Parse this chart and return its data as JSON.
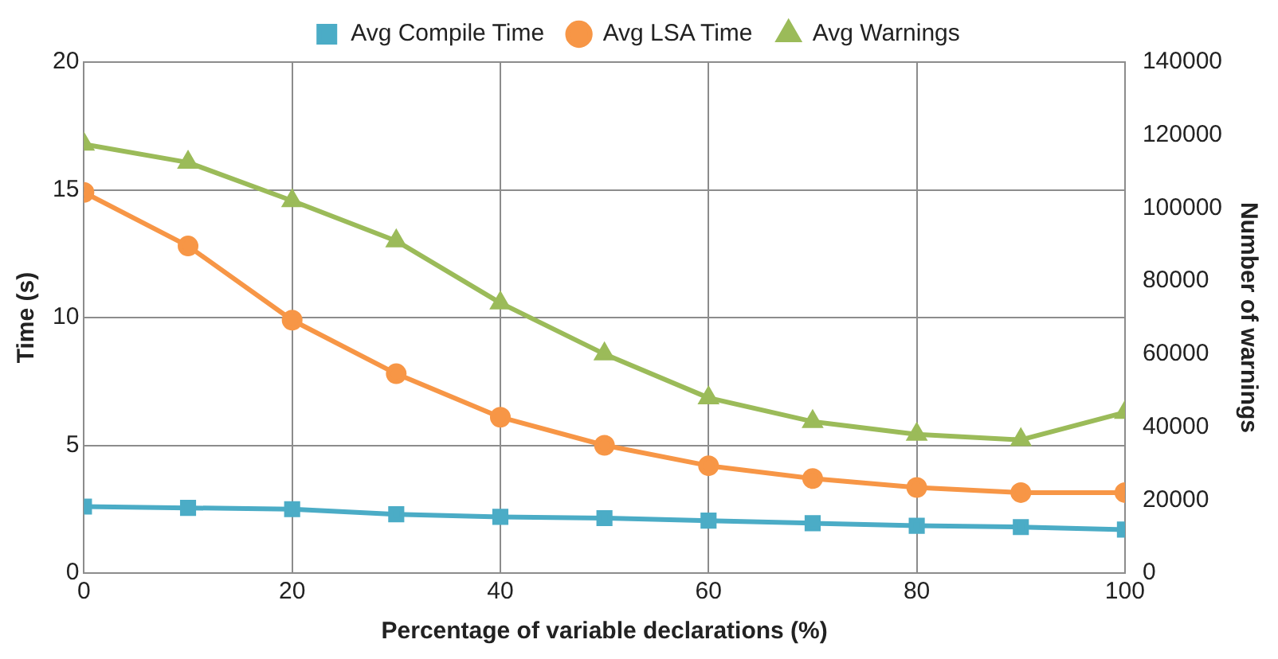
{
  "chart_data": {
    "type": "line",
    "xlabel": "Percentage of variable declarations (%)",
    "ylabel": "Time (s)",
    "y2label": "Number of warnings",
    "x": [
      0,
      10,
      20,
      30,
      40,
      50,
      60,
      70,
      80,
      90,
      100
    ],
    "xlim": [
      0,
      100
    ],
    "xticks": [
      0,
      20,
      40,
      60,
      80,
      100
    ],
    "ylim": [
      0,
      20
    ],
    "yticks": [
      0,
      5,
      10,
      15,
      20
    ],
    "y2lim": [
      0,
      140000
    ],
    "y2ticks": [
      0,
      20000,
      40000,
      60000,
      80000,
      100000,
      120000,
      140000
    ],
    "grid": true,
    "legend": "top",
    "line_style": "solid",
    "series": [
      {
        "name": "Avg Compile Time",
        "color": "#4bacc6",
        "marker": "square",
        "values": [
          2.6,
          2.55,
          2.5,
          2.3,
          2.2,
          2.15,
          2.05,
          1.95,
          1.85,
          1.8,
          1.7
        ]
      },
      {
        "name": "Avg LSA Time",
        "color": "#f79646",
        "marker": "circle",
        "values": [
          14.9,
          12.8,
          9.9,
          7.8,
          6.1,
          5.0,
          4.2,
          3.7,
          3.35,
          3.15,
          3.15
        ]
      },
      {
        "name": "Avg Warnings",
        "color": "#9bbb59",
        "marker": "triangle",
        "axis": "y2",
        "values": [
          117500,
          112500,
          102000,
          91000,
          74000,
          60000,
          48000,
          41500,
          38000,
          36500,
          44000
        ]
      }
    ]
  }
}
